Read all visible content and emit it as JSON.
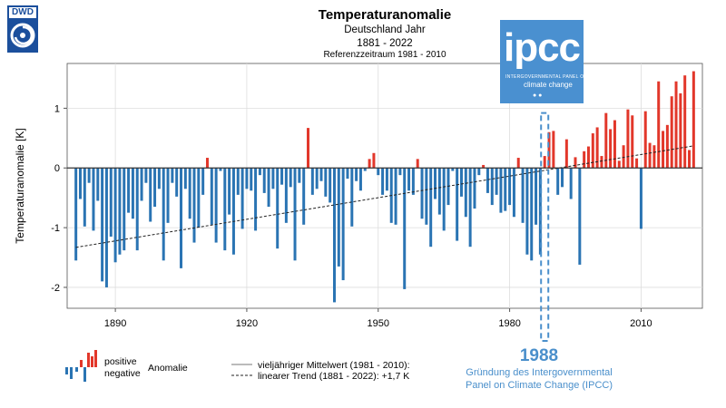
{
  "header": {
    "logo_text": "DWD",
    "title": "Temperaturanomalie",
    "subtitle1": "Deutschland Jahr",
    "subtitle2": "1881 - 2022",
    "subtitle3": "Referenzzeitraum 1981 - 2010"
  },
  "ipcc_logo": {
    "word": "ipcc",
    "line1": "INTERGOVERNMENTAL PANEL ON",
    "line2": "climate change"
  },
  "annotation": {
    "year": "1988",
    "line1": "Gründung des Intergovernmental",
    "line2": "Panel on Climate Change (IPCC)"
  },
  "legend": {
    "positive": "positive",
    "negative": "negative",
    "anomalie": "Anomalie",
    "mean": "vieljähriger Mittelwert (1981 - 2010):",
    "trend": "linearer Trend (1881 - 2022): +1,7 K"
  },
  "colors": {
    "positive": "#e2372a",
    "negative": "#2a74b3",
    "annotation": "#4a8fcb",
    "ipcc_bg": "#4a90d0"
  },
  "chart_data": {
    "type": "bar",
    "title": "Temperaturanomalie",
    "xlabel": "",
    "ylabel": "Temperaturanomalie [K]",
    "x_range": [
      1879,
      2024
    ],
    "ylim": [
      -2.35,
      1.75
    ],
    "x_ticks": [
      1890,
      1920,
      1950,
      1980,
      2010
    ],
    "y_ticks": [
      -2,
      -1,
      0,
      1
    ],
    "start_year": 1881,
    "years": [
      1881,
      1882,
      1883,
      1884,
      1885,
      1886,
      1887,
      1888,
      1889,
      1890,
      1891,
      1892,
      1893,
      1894,
      1895,
      1896,
      1897,
      1898,
      1899,
      1900,
      1901,
      1902,
      1903,
      1904,
      1905,
      1906,
      1907,
      1908,
      1909,
      1910,
      1911,
      1912,
      1913,
      1914,
      1915,
      1916,
      1917,
      1918,
      1919,
      1920,
      1921,
      1922,
      1923,
      1924,
      1925,
      1926,
      1927,
      1928,
      1929,
      1930,
      1931,
      1932,
      1933,
      1934,
      1935,
      1936,
      1937,
      1938,
      1939,
      1940,
      1941,
      1942,
      1943,
      1944,
      1945,
      1946,
      1947,
      1948,
      1949,
      1950,
      1951,
      1952,
      1953,
      1954,
      1955,
      1956,
      1957,
      1958,
      1959,
      1960,
      1961,
      1962,
      1963,
      1964,
      1965,
      1966,
      1967,
      1968,
      1969,
      1970,
      1971,
      1972,
      1973,
      1974,
      1975,
      1976,
      1977,
      1978,
      1979,
      1980,
      1981,
      1982,
      1983,
      1984,
      1985,
      1986,
      1987,
      1988,
      1989,
      1990,
      1991,
      1992,
      1993,
      1994,
      1995,
      1996,
      1997,
      1998,
      1999,
      2000,
      2001,
      2002,
      2003,
      2004,
      2005,
      2006,
      2007,
      2008,
      2009,
      2010,
      2011,
      2012,
      2013,
      2014,
      2015,
      2016,
      2017,
      2018,
      2019,
      2020,
      2021,
      2022
    ],
    "values": [
      -1.55,
      -0.52,
      -0.98,
      -0.25,
      -1.05,
      -0.55,
      -1.9,
      -2.0,
      -1.15,
      -1.58,
      -1.45,
      -1.38,
      -0.75,
      -0.85,
      -1.38,
      -0.55,
      -0.25,
      -0.9,
      -0.65,
      -0.35,
      -1.55,
      -0.92,
      -0.25,
      -0.48,
      -1.68,
      -0.35,
      -0.85,
      -1.25,
      -1.0,
      -0.45,
      0.17,
      -0.95,
      -1.25,
      -0.05,
      -1.38,
      -0.78,
      -1.45,
      -0.45,
      -1.02,
      -0.35,
      -0.38,
      -1.05,
      -0.12,
      -0.42,
      -0.65,
      -0.35,
      -1.35,
      -0.28,
      -0.92,
      -0.32,
      -1.55,
      -0.25,
      -0.95,
      0.67,
      -0.45,
      -0.35,
      -0.22,
      -0.48,
      -0.58,
      -2.25,
      -1.65,
      -1.88,
      -0.18,
      -0.98,
      -0.22,
      -0.38,
      -0.05,
      0.15,
      0.25,
      -0.12,
      -0.45,
      -0.38,
      -0.92,
      -0.95,
      -0.12,
      -2.03,
      -0.38,
      -0.45,
      0.15,
      -0.85,
      -0.95,
      -1.32,
      -0.52,
      -0.78,
      -1.05,
      -0.62,
      -0.05,
      -1.22,
      -0.48,
      -0.82,
      -1.32,
      -0.68,
      -0.12,
      0.05,
      -0.42,
      -0.62,
      -0.45,
      -0.75,
      -0.72,
      -0.62,
      -0.82,
      0.17,
      -0.92,
      -1.45,
      -1.55,
      -0.95,
      -1.45,
      0.2,
      0.6,
      0.62,
      -0.45,
      -0.32,
      0.48,
      -0.52,
      0.18,
      -1.62,
      0.28,
      0.36,
      0.58,
      0.68,
      0.2,
      0.92,
      0.65,
      0.8,
      0.12,
      0.38,
      0.98,
      0.88,
      0.16,
      -1.02,
      0.95,
      0.42,
      0.38,
      1.45,
      0.62,
      0.72,
      1.2,
      1.45,
      1.25,
      1.55,
      0.3,
      1.62
    ],
    "reference_mean": 0,
    "trend": {
      "label": "linearer Trend (1881 - 2022): +1,7 K",
      "start": [
        1881,
        -1.33
      ],
      "end": [
        2022,
        0.37
      ]
    },
    "highlight_year": 1988
  }
}
